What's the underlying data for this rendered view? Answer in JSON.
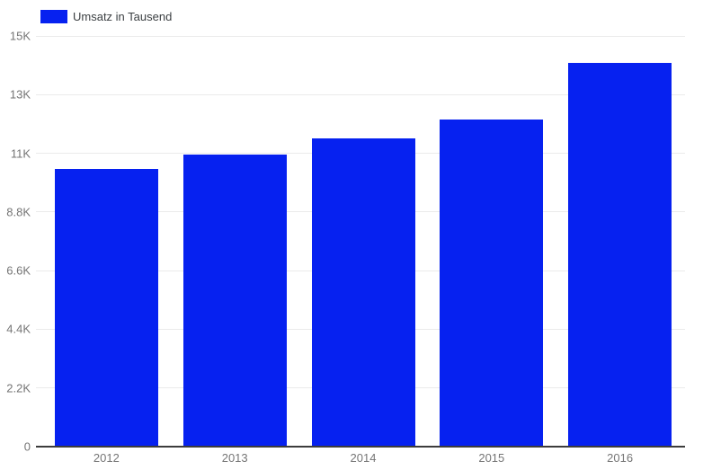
{
  "chart_data": {
    "type": "bar",
    "title": "",
    "legend_position": "top-left",
    "categories": [
      "2012",
      "2013",
      "2014",
      "2015",
      "2016"
    ],
    "series": [
      {
        "name": "Umsatz in Tausend",
        "values": [
          10400,
          10950,
          11550,
          12250,
          14400
        ]
      }
    ],
    "ylim": [
      0,
      15400
    ],
    "yticks": [
      {
        "value": 0,
        "label": "0"
      },
      {
        "value": 2200,
        "label": "2.2K"
      },
      {
        "value": 4400,
        "label": "4.4K"
      },
      {
        "value": 6600,
        "label": "6.6K"
      },
      {
        "value": 8800,
        "label": "8.8K"
      },
      {
        "value": 11000,
        "label": "11K"
      },
      {
        "value": 13200,
        "label": "13K"
      },
      {
        "value": 15400,
        "label": "15K"
      }
    ],
    "grid": true,
    "colors": {
      "bar": "#0621f0",
      "axis_line": "#3c3c3c",
      "gridline": "#ebebeb",
      "tick_label": "#757575",
      "legend_label": "#3c4043",
      "background": "#ffffff"
    }
  }
}
